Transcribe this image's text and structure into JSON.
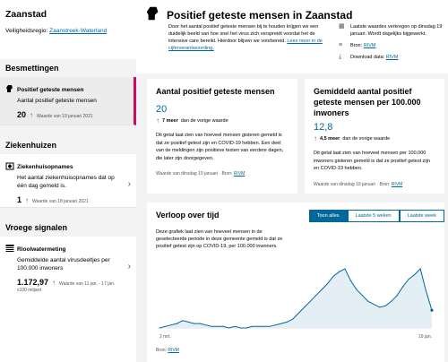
{
  "sidebar": {
    "municipality": "Zaanstad",
    "region_label": "Veiligheidsregio:",
    "region_link": "Zaanstreek-Waterland",
    "sections": {
      "measures": "Besmettingen",
      "hospitals": "Ziekenhuizen",
      "signals": "Vroege signalen"
    },
    "items": {
      "positive": {
        "title": "Positief geteste mensen",
        "subtitle": "Aantal positief geteste mensen",
        "value": "20",
        "date": "Waarde van 19 januari 2021"
      },
      "hospital": {
        "title": "Ziekenhuisopnames",
        "subtitle": "Het aantal ziekenhuisopnames dat op één dag gemeld is.",
        "value": "1",
        "date": "Waarde van 18 januari 2021"
      },
      "sewer": {
        "title": "Rioolwatermeting",
        "subtitle": "Gemiddelde aantal virusdeeltjes per 100.000 inwoners",
        "value": "1.172,97",
        "date": "Waarde van 11 jan. - 17 jan.",
        "unit": "x100 miljard"
      }
    }
  },
  "header": {
    "title": "Positief geteste mensen in Zaanstad",
    "intro": "Door het aantal positief geteste mensen bij te houden krijgen we een duidelijk beeld van hoe snel het virus zich verspreidt voordat het de intensive care bereikt. Hierdoor blijven we voorbereid.",
    "intro_link": "Lees meer in de cijferverantwoording.",
    "meta_updated": "Laatste waardes verkregen op dinsdag 19 januari. Wordt dagelijks bijgewerkt.",
    "meta_source_label": "Bron:",
    "meta_source": "RIVM",
    "meta_download_label": "Download data:",
    "meta_download": "RIVM"
  },
  "cards": {
    "count": {
      "title": "Aantal positief geteste mensen",
      "value": "20",
      "diff_value": "7 meer",
      "diff_text": "dan de vorige waarde",
      "text": "Dit getal laat zien van hoeveel mensen gisteren gemeld is dat ze positief getest zijn en COVID-19 hebben. Een deel van de meldingen zijn positieve testen van eerdere dagen, die later zijn doorgegeven.",
      "source_prefix": "Waarde van dinsdag 19 januari · Bron:",
      "source": "RIVM"
    },
    "avg": {
      "title": "Gemiddeld aantal positief geteste mensen per 100.000 inwoners",
      "value": "12,8",
      "diff_value": "4,5 meer",
      "diff_text": "dan de vorige waarde",
      "text": "Dit getal laat zien van hoeveel mensen per 100.000 inwoners gisteren gemeld is dat ze positief getest zijn en COVID-19 hebben.",
      "source_prefix": "Waarde van dinsdag 19 januari · Bron:",
      "source": "RIVM"
    }
  },
  "chart_section": {
    "title": "Verloop over tijd",
    "tabs": [
      "Toon alles",
      "Laatste 5 weken",
      "Laatste week"
    ],
    "active_tab": 0,
    "description": "Deze grafiek laat zien van hoeveel mensen in de geselecteerde periode in deze gemeente gemeld is dat ze positief getest zijn op COVID-19, per 100.000 inwoners.",
    "source_label": "Bron:",
    "source": "RIVM",
    "x_start_label": "2 mrt.",
    "x_end_label": "19 jan.",
    "colors": {
      "line": "#01689b",
      "fill": "#e3eef5",
      "accent": "#c51063",
      "up": "#d52b1e"
    }
  },
  "chart_data": {
    "type": "area",
    "xlabel": "",
    "ylabel": "",
    "x": [
      "2 mrt.",
      "",
      "",
      "",
      "",
      "",
      "",
      "",
      "",
      "",
      "",
      "",
      "",
      "",
      "",
      "",
      "",
      "",
      "",
      "",
      "",
      "",
      "",
      "",
      "",
      "",
      "",
      "",
      "",
      "",
      "",
      "",
      "",
      "",
      "",
      "",
      "",
      "",
      "",
      "",
      "",
      "",
      "",
      "",
      "",
      "",
      "",
      "19 jan."
    ],
    "series": [
      {
        "values": [
          0,
          1,
          2,
          3,
          5,
          4,
          3,
          3,
          2,
          1,
          1,
          1,
          0,
          1,
          0,
          0,
          1,
          1,
          1,
          1,
          2,
          3,
          4,
          6,
          10,
          14,
          18,
          22,
          26,
          30,
          35,
          38,
          40,
          32,
          26,
          22,
          18,
          16,
          14,
          15,
          18,
          22,
          28,
          33,
          36,
          40,
          25,
          12
        ]
      }
    ]
  }
}
